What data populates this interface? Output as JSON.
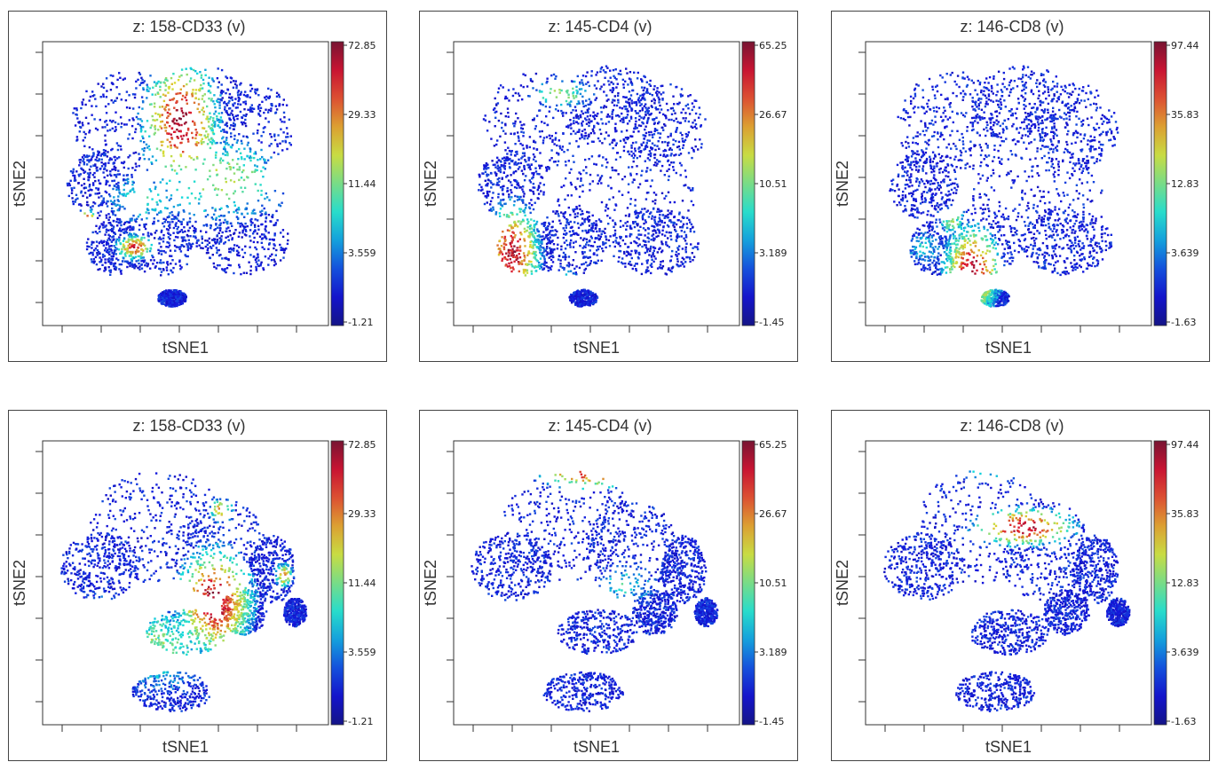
{
  "chart_data": [
    {
      "type": "scatter",
      "title": "z: 158-CD33 (v)",
      "xlabel": "tSNE1",
      "ylabel": "tSNE2",
      "colorbar_ticks": [
        "72.85",
        "29.33",
        "11.44",
        "3.559",
        "-1.21"
      ],
      "layout": "A",
      "hotspots": [
        {
          "x": 0.48,
          "y": 0.28,
          "w": 0.12,
          "h": 0.2,
          "level": 0.95
        },
        {
          "x": 0.62,
          "y": 0.48,
          "w": 0.22,
          "h": 0.14,
          "level": 0.55
        },
        {
          "x": 0.35,
          "y": 0.55,
          "w": 0.12,
          "h": 0.08,
          "level": 0.45
        },
        {
          "x": 0.32,
          "y": 0.72,
          "w": 0.06,
          "h": 0.04,
          "level": 0.85
        },
        {
          "x": 0.15,
          "y": 0.62,
          "w": 0.03,
          "h": 0.03,
          "level": 0.9
        }
      ]
    },
    {
      "type": "scatter",
      "title": "z: 145-CD4 (v)",
      "xlabel": "tSNE1",
      "ylabel": "tSNE2",
      "colorbar_ticks": [
        "65.25",
        "26.67",
        "10.51",
        "3.189",
        "-1.45"
      ],
      "layout": "A",
      "hotspots": [
        {
          "x": 0.2,
          "y": 0.74,
          "w": 0.09,
          "h": 0.16,
          "level": 0.92
        },
        {
          "x": 0.37,
          "y": 0.18,
          "w": 0.1,
          "h": 0.05,
          "level": 0.55
        },
        {
          "x": 0.4,
          "y": 0.84,
          "w": 0.04,
          "h": 0.04,
          "level": 0.5
        }
      ]
    },
    {
      "type": "scatter",
      "title": "z: 146-CD8 (v)",
      "xlabel": "tSNE1",
      "ylabel": "tSNE2",
      "colorbar_ticks": [
        "97.44",
        "35.83",
        "12.83",
        "3.639",
        "-1.63"
      ],
      "layout": "A",
      "hotspots": [
        {
          "x": 0.37,
          "y": 0.8,
          "w": 0.09,
          "h": 0.14,
          "level": 0.93
        },
        {
          "x": 0.3,
          "y": 0.63,
          "w": 0.05,
          "h": 0.05,
          "level": 0.5
        },
        {
          "x": 0.2,
          "y": 0.72,
          "w": 0.07,
          "h": 0.06,
          "level": 0.35
        }
      ]
    },
    {
      "type": "scatter",
      "title": "z: 158-CD33 (v)",
      "xlabel": "tSNE1",
      "ylabel": "tSNE2",
      "colorbar_ticks": [
        "72.85",
        "29.33",
        "11.44",
        "3.559",
        "-1.21"
      ],
      "layout": "B",
      "hotspots": [
        {
          "x": 0.6,
          "y": 0.56,
          "w": 0.12,
          "h": 0.17,
          "level": 0.95
        },
        {
          "x": 0.4,
          "y": 0.72,
          "w": 0.2,
          "h": 0.14,
          "level": 0.5
        },
        {
          "x": 0.2,
          "y": 0.6,
          "w": 0.06,
          "h": 0.06,
          "level": 0.45
        },
        {
          "x": 0.62,
          "y": 0.24,
          "w": 0.04,
          "h": 0.04,
          "level": 0.7
        },
        {
          "x": 0.84,
          "y": 0.47,
          "w": 0.03,
          "h": 0.04,
          "level": 0.75
        }
      ]
    },
    {
      "type": "scatter",
      "title": "z: 145-CD4 (v)",
      "xlabel": "tSNE1",
      "ylabel": "tSNE2",
      "colorbar_ticks": [
        "65.25",
        "26.67",
        "10.51",
        "3.189",
        "-1.45"
      ],
      "layout": "B",
      "hotspots": [
        {
          "x": 0.47,
          "y": 0.1,
          "w": 0.17,
          "h": 0.06,
          "level": 0.92
        },
        {
          "x": 0.6,
          "y": 0.5,
          "w": 0.1,
          "h": 0.07,
          "level": 0.4
        }
      ]
    },
    {
      "type": "scatter",
      "title": "z: 146-CD8 (v)",
      "xlabel": "tSNE1",
      "ylabel": "tSNE2",
      "colorbar_ticks": [
        "97.44",
        "35.83",
        "12.83",
        "3.639",
        "-1.63"
      ],
      "layout": "B",
      "hotspots": [
        {
          "x": 0.55,
          "y": 0.3,
          "w": 0.16,
          "h": 0.06,
          "level": 0.95
        },
        {
          "x": 0.44,
          "y": 0.1,
          "w": 0.12,
          "h": 0.04,
          "level": 0.4
        },
        {
          "x": 0.38,
          "y": 0.55,
          "w": 0.02,
          "h": 0.02,
          "level": 0.8
        }
      ]
    }
  ]
}
